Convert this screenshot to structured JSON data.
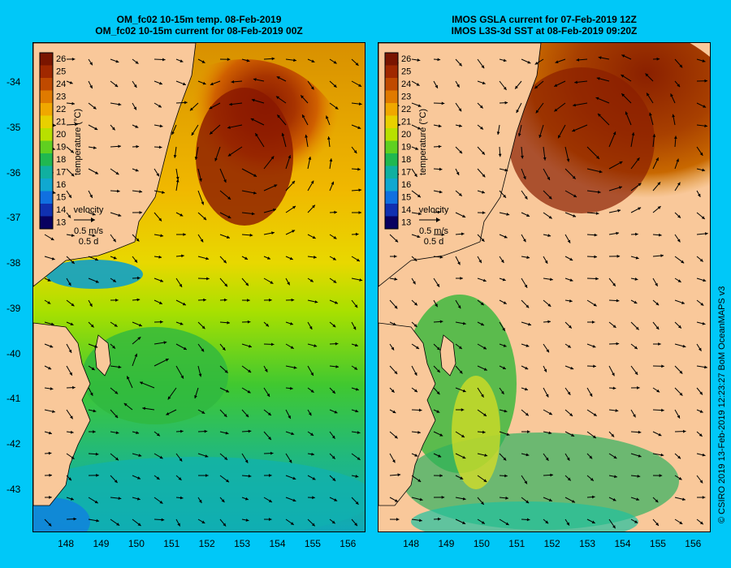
{
  "left_panel": {
    "title_line1": "OM_fc02 10-15m temp. 08-Feb-2019",
    "title_line2": "OM_fc02 10-15m current for 08-Feb-2019 00Z"
  },
  "right_panel": {
    "title_line1": "IMOS GSLA current for 07-Feb-2019 12Z",
    "title_line2": "IMOS L3S-3d SST at 08-Feb-2019 09:20Z"
  },
  "colorbar": {
    "label": "temperature (°C)",
    "ticks": [
      "26",
      "25",
      "24",
      "23",
      "22",
      "21",
      "20",
      "19",
      "18",
      "17",
      "16",
      "15",
      "14",
      "13"
    ],
    "colors": [
      "#7a1500",
      "#a02800",
      "#c04a00",
      "#e07a00",
      "#f0a800",
      "#e8d000",
      "#b8e000",
      "#60d020",
      "#20b850",
      "#10b0a0",
      "#10a8d0",
      "#1070e0",
      "#1030b0",
      "#080060"
    ]
  },
  "velocity_key": {
    "label": "velocity",
    "speed": "0.5 m/s",
    "duration": "0.5 d"
  },
  "map_data": {
    "lon_ticks": [
      "148",
      "149",
      "150",
      "151",
      "152",
      "153",
      "154",
      "155",
      "156"
    ],
    "lat_ticks": [
      "-34",
      "-35",
      "-36",
      "-37",
      "-38",
      "-39",
      "-40",
      "-41",
      "-42",
      "-43"
    ],
    "lon_range": [
      147.1,
      156.5
    ],
    "lat_range": [
      -43.9,
      -33.1
    ]
  },
  "credit": "© CSIRO 2019   13-Feb-2019 12:23:27 BoM OceanMAPS v3"
}
